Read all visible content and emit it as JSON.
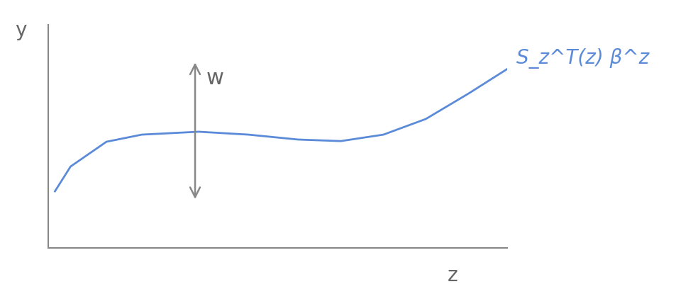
{
  "chart_data": {
    "type": "line",
    "x_label": "z",
    "y_label": "y",
    "series": [
      {
        "name": "S_z^T(z) β^z",
        "color": "#5b8bd8",
        "x": [
          1.5,
          4.9,
          12.7,
          20.4,
          32.8,
          43.6,
          54.4,
          63.7,
          73.0,
          82.2,
          91.5,
          100
        ],
        "values": [
          25.4,
          36.5,
          47.6,
          50.8,
          52.1,
          50.8,
          48.6,
          47.9,
          50.8,
          57.8,
          69.2,
          80.3
        ]
      }
    ],
    "annotations": [
      "w"
    ],
    "xlim": [
      0,
      100
    ],
    "ylim": [
      0,
      100
    ],
    "tick_labels": false,
    "grid": false
  }
}
